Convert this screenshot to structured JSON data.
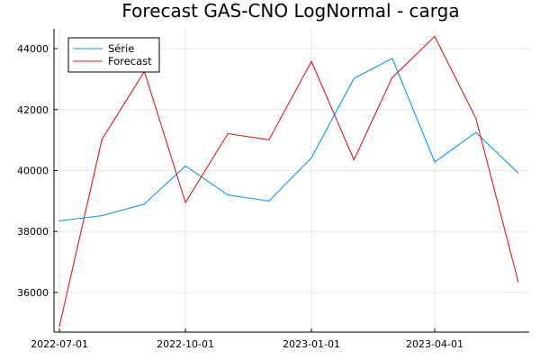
{
  "chart_data": {
    "type": "line",
    "title": "Forecast GAS-CNO LogNormal - carga",
    "xlabel": "",
    "ylabel": "",
    "x": [
      "2022-07-01",
      "2022-08-01",
      "2022-09-01",
      "2022-10-01",
      "2022-11-01",
      "2022-12-01",
      "2023-01-01",
      "2023-02-01",
      "2023-03-01",
      "2023-04-01",
      "2023-05-01",
      "2023-06-01"
    ],
    "x_ticks": [
      "2022-07-01",
      "2022-10-01",
      "2023-01-01",
      "2023-04-01"
    ],
    "y_ticks": [
      36000,
      38000,
      40000,
      42000,
      44000
    ],
    "y_tick_labels": [
      "36000",
      "38000",
      "40000",
      "42000",
      "44000"
    ],
    "xlim": [
      "2022-06-27",
      "2023-06-09"
    ],
    "ylim": [
      34700,
      44650
    ],
    "grid": true,
    "legend_position": "top-left",
    "series": [
      {
        "name": "Série",
        "color": "#009AF9",
        "values": [
          38350,
          38520,
          38900,
          40150,
          39200,
          39000,
          40420,
          43020,
          43680,
          40280,
          41250,
          39920
        ]
      },
      {
        "name": "Forecast",
        "color": "#E5141D",
        "values": [
          34900,
          41020,
          43250,
          38950,
          41210,
          41010,
          43580,
          40350,
          43050,
          44400,
          41720,
          36350
        ]
      }
    ]
  }
}
